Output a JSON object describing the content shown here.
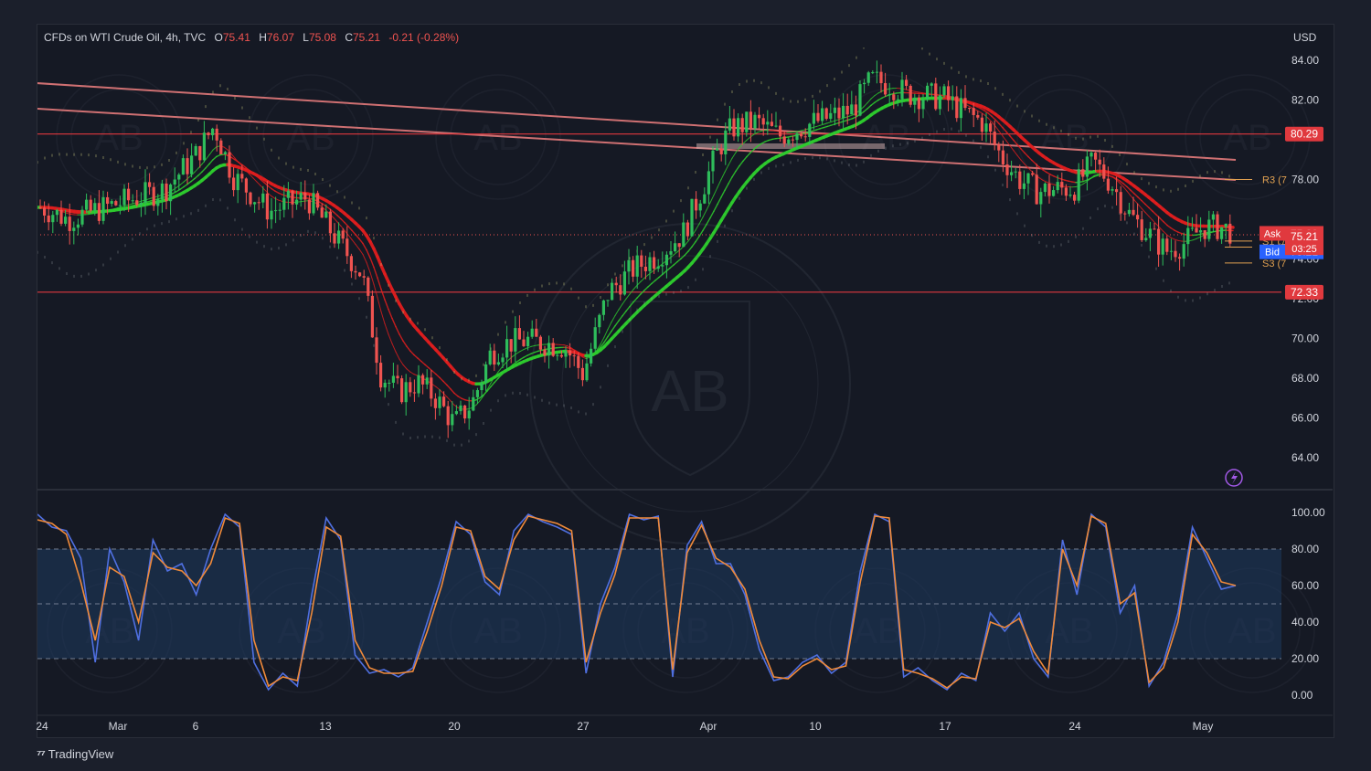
{
  "header": {
    "symbol": "CFDs on WTI Crude Oil, 4h, TVC",
    "open_label": "O",
    "open": "75.41",
    "high_label": "H",
    "high": "76.07",
    "low_label": "L",
    "low": "75.08",
    "close_label": "C",
    "close": "75.21",
    "change": "-0.21 (-0.28%)"
  },
  "currency": "USD",
  "branding": "TradingView",
  "colors": {
    "background": "#151924",
    "up": "#26a69a",
    "up_body": "#2ebd5b",
    "down": "#ef5350",
    "ma_red": "#e01e1e",
    "ma_green": "#2ecc2e",
    "k_line": "#4f6fe0",
    "d_line": "#f08a3a",
    "level_line": "#e0393e",
    "trend_line": "#f08080"
  },
  "chart_data": [
    {
      "type": "candlestick",
      "title": "CFDs on WTI Crude Oil, 4h, TVC",
      "x_tick_labels": [
        "24",
        "Mar",
        "6",
        "13",
        "20",
        "27",
        "Apr",
        "10",
        "17",
        "24",
        "May"
      ],
      "y_tick_labels": [
        "84.00",
        "82.00",
        "78.00",
        "74.00",
        "72.00",
        "70.00",
        "68.00",
        "66.00",
        "64.00"
      ],
      "ylim": [
        63,
        85
      ],
      "grid": false,
      "close_path": [
        {
          "x": "Feb 24",
          "y": 76.6
        },
        {
          "x": "Feb 26",
          "y": 76.0
        },
        {
          "x": "Mar 1",
          "y": 76.8
        },
        {
          "x": "Mar 4",
          "y": 77.5
        },
        {
          "x": "Mar 6",
          "y": 79.2
        },
        {
          "x": "Mar 7",
          "y": 80.7
        },
        {
          "x": "Mar 8",
          "y": 78.2
        },
        {
          "x": "Mar 10",
          "y": 76.4
        },
        {
          "x": "Mar 12",
          "y": 77.1
        },
        {
          "x": "Mar 14",
          "y": 74.5
        },
        {
          "x": "Mar 15",
          "y": 73.2
        },
        {
          "x": "Mar 16",
          "y": 68.2
        },
        {
          "x": "Mar 17",
          "y": 67.3
        },
        {
          "x": "Mar 18",
          "y": 67.8
        },
        {
          "x": "Mar 19",
          "y": 67.0
        },
        {
          "x": "Mar 20",
          "y": 65.7
        },
        {
          "x": "Mar 21",
          "y": 66.8
        },
        {
          "x": "Mar 22",
          "y": 69.3
        },
        {
          "x": "Mar 23",
          "y": 69.8
        },
        {
          "x": "Mar 24",
          "y": 69.9
        },
        {
          "x": "Mar 26",
          "y": 69.6
        },
        {
          "x": "Mar 27",
          "y": 68.2
        },
        {
          "x": "Mar 28",
          "y": 72.3
        },
        {
          "x": "Mar 29",
          "y": 73.5
        },
        {
          "x": "Mar 30",
          "y": 74.2
        },
        {
          "x": "Mar 31",
          "y": 75.3
        },
        {
          "x": "Apr 2",
          "y": 79.7
        },
        {
          "x": "Apr 3",
          "y": 80.6
        },
        {
          "x": "Apr 5",
          "y": 80.9
        },
        {
          "x": "Apr 7",
          "y": 80.2
        },
        {
          "x": "Apr 10",
          "y": 80.9
        },
        {
          "x": "Apr 12",
          "y": 81.5
        },
        {
          "x": "Apr 13",
          "y": 83.0
        },
        {
          "x": "Apr 14",
          "y": 82.8
        },
        {
          "x": "Apr 15",
          "y": 82.3
        },
        {
          "x": "Apr 17",
          "y": 82.1
        },
        {
          "x": "Apr 18",
          "y": 81.4
        },
        {
          "x": "Apr 19",
          "y": 80.9
        },
        {
          "x": "Apr 20",
          "y": 79.2
        },
        {
          "x": "Apr 21",
          "y": 78.0
        },
        {
          "x": "Apr 22",
          "y": 77.4
        },
        {
          "x": "Apr 24",
          "y": 77.6
        },
        {
          "x": "Apr 25",
          "y": 78.9
        },
        {
          "x": "Apr 26",
          "y": 77.8
        },
        {
          "x": "Apr 27",
          "y": 76.2
        },
        {
          "x": "Apr 28",
          "y": 75.3
        },
        {
          "x": "Apr 29",
          "y": 74.4
        },
        {
          "x": "Apr 30",
          "y": 74.8
        },
        {
          "x": "May 1",
          "y": 75.6
        },
        {
          "x": "May 2",
          "y": 75.6
        },
        {
          "x": "May 3",
          "y": 75.21
        }
      ],
      "horizontal_levels": [
        {
          "label": "80.29",
          "value": 80.29
        },
        {
          "label": "72.33",
          "value": 72.33
        }
      ],
      "pivot_labels": [
        "R3 (7",
        "S1 (7",
        "S2 (7",
        "S3 (7"
      ],
      "price_tags": {
        "ask_label": "Ask",
        "ask": "75.29",
        "bid_label": "Bid",
        "bid": "75.21",
        "last": "75.21",
        "countdown": "03:25"
      }
    },
    {
      "type": "line",
      "title": "",
      "y_tick_labels": [
        "100.00",
        "80.00",
        "60.00",
        "40.00",
        "20.00",
        "0.00"
      ],
      "ylim": [
        0,
        100
      ],
      "band": [
        20,
        80
      ],
      "midline": 50,
      "series": [
        {
          "values": [
            99,
            92,
            90,
            75,
            18,
            80,
            62,
            30,
            85,
            68,
            72,
            55,
            80,
            99,
            92,
            18,
            3,
            12,
            5,
            55,
            97,
            85,
            22,
            12,
            14,
            10,
            15,
            40,
            65,
            95,
            88,
            62,
            55,
            90,
            99,
            95,
            92,
            88,
            12,
            50,
            70,
            99,
            96,
            98,
            10,
            82,
            95,
            72,
            72,
            55,
            25,
            8,
            10,
            18,
            22,
            12,
            18,
            68,
            99,
            95,
            10,
            15,
            8,
            3,
            12,
            8,
            45,
            35,
            45,
            20,
            10,
            85,
            55,
            99,
            92,
            45,
            60,
            5,
            18,
            45,
            92,
            75,
            58,
            60
          ]
        },
        {
          "values": [
            96,
            94,
            88,
            62,
            30,
            70,
            65,
            40,
            78,
            70,
            68,
            60,
            72,
            97,
            94,
            30,
            5,
            10,
            8,
            45,
            92,
            87,
            30,
            15,
            12,
            12,
            13,
            35,
            60,
            92,
            90,
            65,
            58,
            85,
            98,
            96,
            94,
            90,
            18,
            45,
            66,
            97,
            97,
            97,
            14,
            78,
            93,
            75,
            70,
            58,
            30,
            10,
            9,
            16,
            20,
            14,
            16,
            62,
            98,
            97,
            14,
            12,
            9,
            4,
            10,
            9,
            40,
            37,
            42,
            24,
            12,
            80,
            60,
            98,
            94,
            50,
            56,
            7,
            15,
            40,
            88,
            78,
            62,
            60
          ]
        }
      ]
    }
  ]
}
